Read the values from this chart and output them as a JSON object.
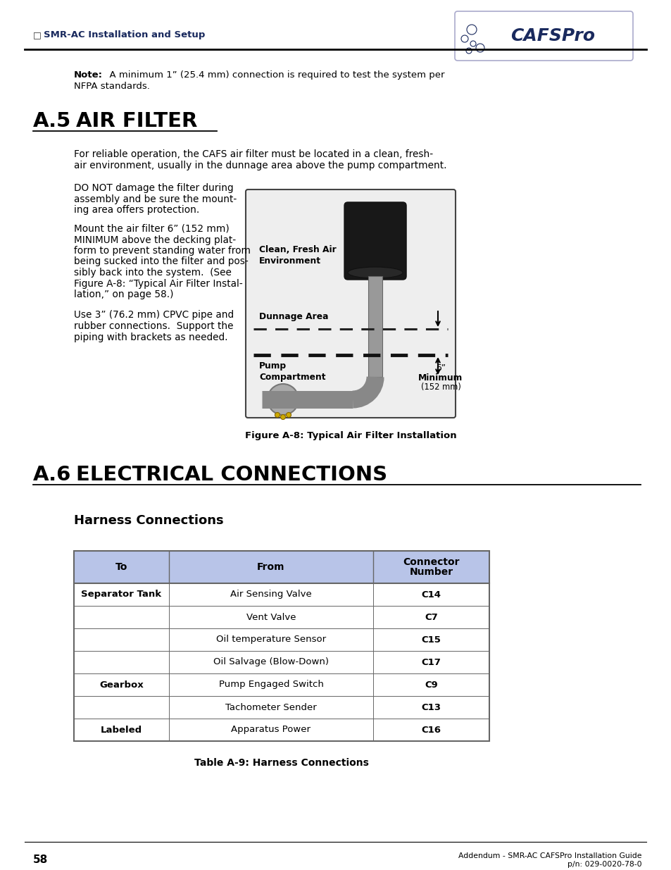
{
  "page_bg": "#ffffff",
  "header_checkbox": "□",
  "header_text": "SMR-AC Installation and Setup",
  "header_line_color": "#000000",
  "section_a5_label": "A.5",
  "section_a5_title": "AIR FILTER",
  "note_bold": "Note:",
  "note_rest": "  A minimum 1” (25.4 mm) connection is required to test the system per",
  "note_rest2": "NFPA standards.",
  "para1_l1": "For reliable operation, the CAFS air filter must be located in a clean, fresh-",
  "para1_l2": "air environment, usually in the dunnage area above the pump compartment.",
  "para2_lines": [
    "DO NOT damage the filter during",
    "assembly and be sure the mount-",
    "ing area offers protection."
  ],
  "para3_lines": [
    "Mount the air filter 6” (152 mm)",
    "MINIMUM above the decking plat-",
    "form to prevent standing water from",
    "being sucked into the filter and pos-",
    "sibly back into the system.  (See",
    "Figure A-8: “Typical Air Filter Instal-",
    "lation,” on page 58.)"
  ],
  "para4_lines": [
    "Use 3” (76.2 mm) CPVC pipe and",
    "rubber connections.  Support the",
    "piping with brackets as needed."
  ],
  "fig_caption": "Figure A-8: Typical Air Filter Installation",
  "img_label_clean_air_1": "Clean, Fresh Air",
  "img_label_clean_air_2": "Environment",
  "img_label_dunnage": "Dunnage Area",
  "img_label_pump_1": "Pump",
  "img_label_pump_2": "Compartment",
  "img_label_6inch": "6”",
  "img_label_min": "Minimum",
  "img_label_152": "(152 mm)",
  "section_a6_label": "A.6",
  "section_a6_title": "ELECTRICAL CONNECTIONS",
  "subsection_harness": "Harness Connections",
  "table_header_to": "To",
  "table_header_from": "From",
  "table_header_connector_1": "Connector",
  "table_header_connector_2": "Number",
  "table_header_bg": "#b8c4e8",
  "table_border_color": "#666666",
  "table_rows": [
    [
      "Separator Tank",
      "Air Sensing Valve",
      "C14"
    ],
    [
      "",
      "Vent Valve",
      "C7"
    ],
    [
      "",
      "Oil temperature Sensor",
      "C15"
    ],
    [
      "",
      "Oil Salvage (Blow-Down)",
      "C17"
    ],
    [
      "Gearbox",
      "Pump Engaged Switch",
      "C9"
    ],
    [
      "",
      "Tachometer Sender",
      "C13"
    ],
    [
      "Labeled",
      "Apparatus Power",
      "C16"
    ]
  ],
  "bold_to_values": [
    "Separator Tank",
    "Gearbox",
    "Labeled"
  ],
  "table_caption": "Table A-9: Harness Connections",
  "footer_page": "58",
  "footer_right_1": "Addendum - SMR-AC CAFSPro Installation Guide",
  "footer_right_2": "p/n: 029-0020-78-0",
  "dark_navy": "#1a2a5e",
  "text_black": "#000000",
  "logo_text": "CAFSPro",
  "logo_bg": "#ffffff",
  "logo_border": "#aaaacc"
}
